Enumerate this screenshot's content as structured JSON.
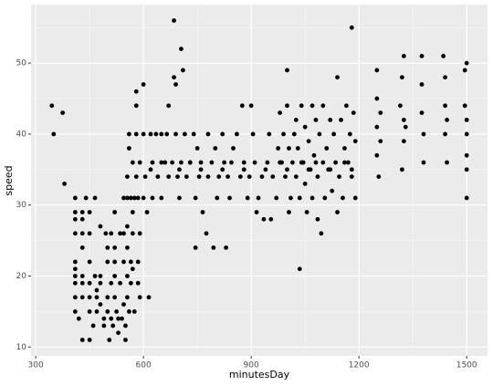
{
  "chart_data": {
    "type": "scatter",
    "x_label": "minutesDay",
    "y_label": "speed",
    "color": "#000000",
    "grid": true,
    "xlim": [
      287,
      1558
    ],
    "xticks": [
      300,
      600,
      900,
      1200,
      1500
    ],
    "ylim": [
      8.75,
      58.25
    ],
    "yticks": [
      10,
      20,
      30,
      40,
      50
    ],
    "x": [
      345,
      350,
      375,
      380,
      410,
      410,
      410,
      410,
      410,
      410,
      410,
      410,
      410,
      410,
      420,
      430,
      430,
      430,
      430,
      430,
      430,
      430,
      430,
      440,
      450,
      450,
      450,
      450,
      450,
      450,
      450,
      460,
      465,
      465,
      470,
      470,
      470,
      480,
      480,
      480,
      480,
      490,
      490,
      495,
      500,
      500,
      500,
      500,
      505,
      510,
      510,
      510,
      515,
      520,
      520,
      520,
      520,
      520,
      525,
      530,
      530,
      535,
      535,
      540,
      545,
      545,
      545,
      545,
      550,
      550,
      555,
      555,
      555,
      555,
      555,
      555,
      560,
      560,
      560,
      565,
      565,
      565,
      570,
      570,
      570,
      570,
      575,
      575,
      580,
      580,
      580,
      580,
      585,
      585,
      585,
      590,
      590,
      590,
      600,
      600,
      600,
      605,
      610,
      615,
      620,
      625,
      625,
      635,
      640,
      650,
      650,
      660,
      665,
      670,
      670,
      680,
      685,
      685,
      690,
      690,
      695,
      700,
      705,
      705,
      710,
      715,
      720,
      730,
      740,
      745,
      745,
      750,
      755,
      760,
      765,
      775,
      780,
      780,
      790,
      795,
      800,
      805,
      810,
      820,
      825,
      830,
      835,
      840,
      845,
      850,
      860,
      870,
      875,
      880,
      890,
      895,
      900,
      905,
      910,
      915,
      920,
      930,
      935,
      945,
      950,
      955,
      960,
      970,
      975,
      980,
      985,
      990,
      995,
      1000,
      1000,
      1005,
      1005,
      1010,
      1015,
      1020,
      1025,
      1025,
      1030,
      1035,
      1035,
      1040,
      1045,
      1050,
      1050,
      1055,
      1060,
      1065,
      1070,
      1070,
      1075,
      1080,
      1085,
      1085,
      1090,
      1095,
      1100,
      1100,
      1105,
      1110,
      1115,
      1120,
      1125,
      1130,
      1135,
      1140,
      1140,
      1145,
      1150,
      1155,
      1160,
      1165,
      1170,
      1175,
      1180,
      1180,
      1185,
      1190,
      1190,
      1250,
      1250,
      1250,
      1250,
      1255,
      1260,
      1260,
      1315,
      1320,
      1320,
      1325,
      1325,
      1325,
      1330,
      1375,
      1375,
      1375,
      1380,
      1380,
      1435,
      1440,
      1440,
      1440,
      1445,
      1445,
      1495,
      1495,
      1500,
      1500,
      1500,
      1500,
      1500,
      1500,
      620,
      700,
      760,
      820,
      880,
      940,
      1000,
      1060,
      1120,
      1180,
      1040,
      1080,
      1160,
      980,
      650,
      730
    ],
    "values": [
      44,
      40,
      43,
      33,
      31,
      29,
      28,
      26,
      22,
      21,
      20,
      19,
      17,
      15,
      14,
      11,
      29,
      28,
      26,
      24,
      20,
      19,
      17,
      31,
      11,
      29,
      26,
      22,
      19,
      17,
      15,
      13,
      31,
      20,
      18,
      17,
      15,
      27,
      20,
      19,
      16,
      14,
      13,
      26,
      24,
      22,
      17,
      15,
      11,
      26,
      19,
      14,
      13,
      29,
      24,
      22,
      20,
      17,
      15,
      14,
      12,
      26,
      19,
      14,
      31,
      26,
      22,
      16,
      13,
      11,
      34,
      31,
      27,
      24,
      20,
      17,
      40,
      38,
      15,
      31,
      22,
      19,
      36,
      29,
      26,
      21,
      31,
      15,
      46,
      44,
      40,
      34,
      31,
      22,
      19,
      36,
      26,
      17,
      47,
      40,
      31,
      34,
      29,
      17,
      40,
      36,
      31,
      40,
      34,
      40,
      31,
      36,
      40,
      44,
      34,
      36,
      56,
      48,
      47,
      40,
      34,
      31,
      52,
      36,
      49,
      40,
      34,
      36,
      40,
      31,
      24,
      38,
      34,
      36,
      29,
      26,
      40,
      34,
      36,
      24,
      38,
      31,
      34,
      40,
      36,
      24,
      34,
      31,
      36,
      38,
      40,
      34,
      44,
      36,
      31,
      34,
      44,
      40,
      36,
      29,
      31,
      34,
      28,
      36,
      40,
      28,
      34,
      31,
      38,
      43,
      36,
      40,
      34,
      49,
      44,
      38,
      29,
      31,
      36,
      40,
      42,
      34,
      38,
      21,
      31,
      44,
      36,
      41,
      33,
      29,
      39,
      35,
      44,
      31,
      37,
      42,
      34,
      28,
      40,
      26,
      36,
      44,
      31,
      38,
      35,
      42,
      32,
      40,
      36,
      48,
      29,
      34,
      42,
      31,
      38,
      44,
      36,
      40,
      55,
      34,
      43,
      31,
      39,
      49,
      45,
      41,
      37,
      34,
      43,
      39,
      44,
      48,
      35,
      51,
      42,
      39,
      41,
      51,
      47,
      43,
      40,
      36,
      51,
      48,
      44,
      40,
      42,
      36,
      49,
      44,
      50,
      42,
      40,
      37,
      35,
      31,
      35,
      35,
      35,
      35,
      35,
      35,
      35,
      35,
      35,
      35,
      36,
      36,
      36,
      36,
      36,
      36
    ]
  }
}
